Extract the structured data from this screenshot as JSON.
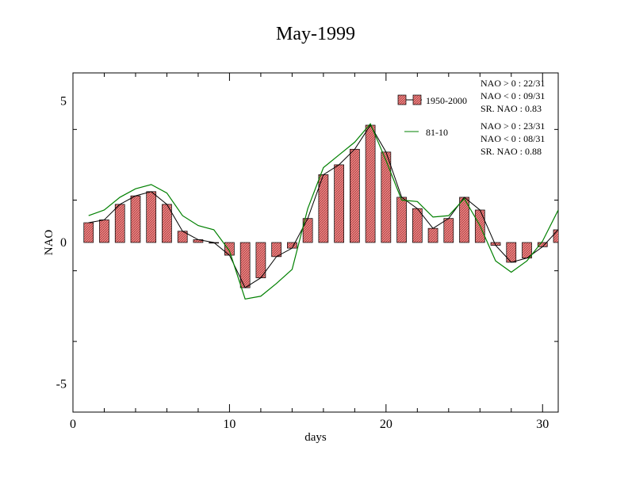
{
  "chart_data": {
    "type": "bar",
    "title": "May-1999",
    "xlabel": "days",
    "ylabel": "NAO",
    "xlim": [
      0,
      31
    ],
    "ylim": [
      -6,
      6
    ],
    "x_ticks": [
      0,
      10,
      20,
      30
    ],
    "y_ticks": [
      -5,
      0,
      5
    ],
    "x_tick_labels": [
      "0",
      "10",
      "20",
      "30"
    ],
    "y_tick_labels": [
      "-5",
      "0",
      "5"
    ],
    "grid": false,
    "legend_position": "top-right",
    "x": [
      1,
      2,
      3,
      4,
      5,
      6,
      7,
      8,
      9,
      10,
      11,
      12,
      13,
      14,
      15,
      16,
      17,
      18,
      19,
      20,
      21,
      22,
      23,
      24,
      25,
      26,
      27,
      28,
      29,
      30,
      31
    ],
    "series": [
      {
        "name": "1950-2000",
        "kind": "bar",
        "values": [
          0.7,
          0.8,
          1.35,
          1.65,
          1.8,
          1.35,
          0.4,
          0.1,
          0.0,
          -0.45,
          -1.6,
          -1.25,
          -0.5,
          -0.2,
          0.85,
          2.4,
          2.75,
          3.3,
          4.15,
          3.2,
          1.6,
          1.2,
          0.5,
          0.85,
          1.6,
          1.15,
          -0.1,
          -0.7,
          -0.55,
          -0.15,
          0.45
        ]
      },
      {
        "name": "81-10",
        "kind": "line",
        "values": [
          0.95,
          1.15,
          1.6,
          1.9,
          2.05,
          1.75,
          0.95,
          0.6,
          0.45,
          -0.3,
          -2.0,
          -1.9,
          -1.45,
          -0.95,
          1.2,
          2.65,
          3.1,
          3.55,
          4.2,
          2.9,
          1.5,
          1.45,
          0.9,
          0.95,
          1.55,
          0.6,
          -0.65,
          -1.05,
          -0.65,
          0.05,
          1.15
        ]
      }
    ],
    "line_color": "#008000",
    "bar_fill": "#f08080",
    "bar_connect_color": "#000000",
    "stats": [
      [
        "NAO > 0 : 22/31",
        "NAO < 0 : 09/31",
        "SR. NAO :  0.83"
      ],
      [
        "NAO > 0 : 23/31",
        "NAO < 0 : 08/31",
        "SR. NAO :  0.88"
      ]
    ]
  }
}
